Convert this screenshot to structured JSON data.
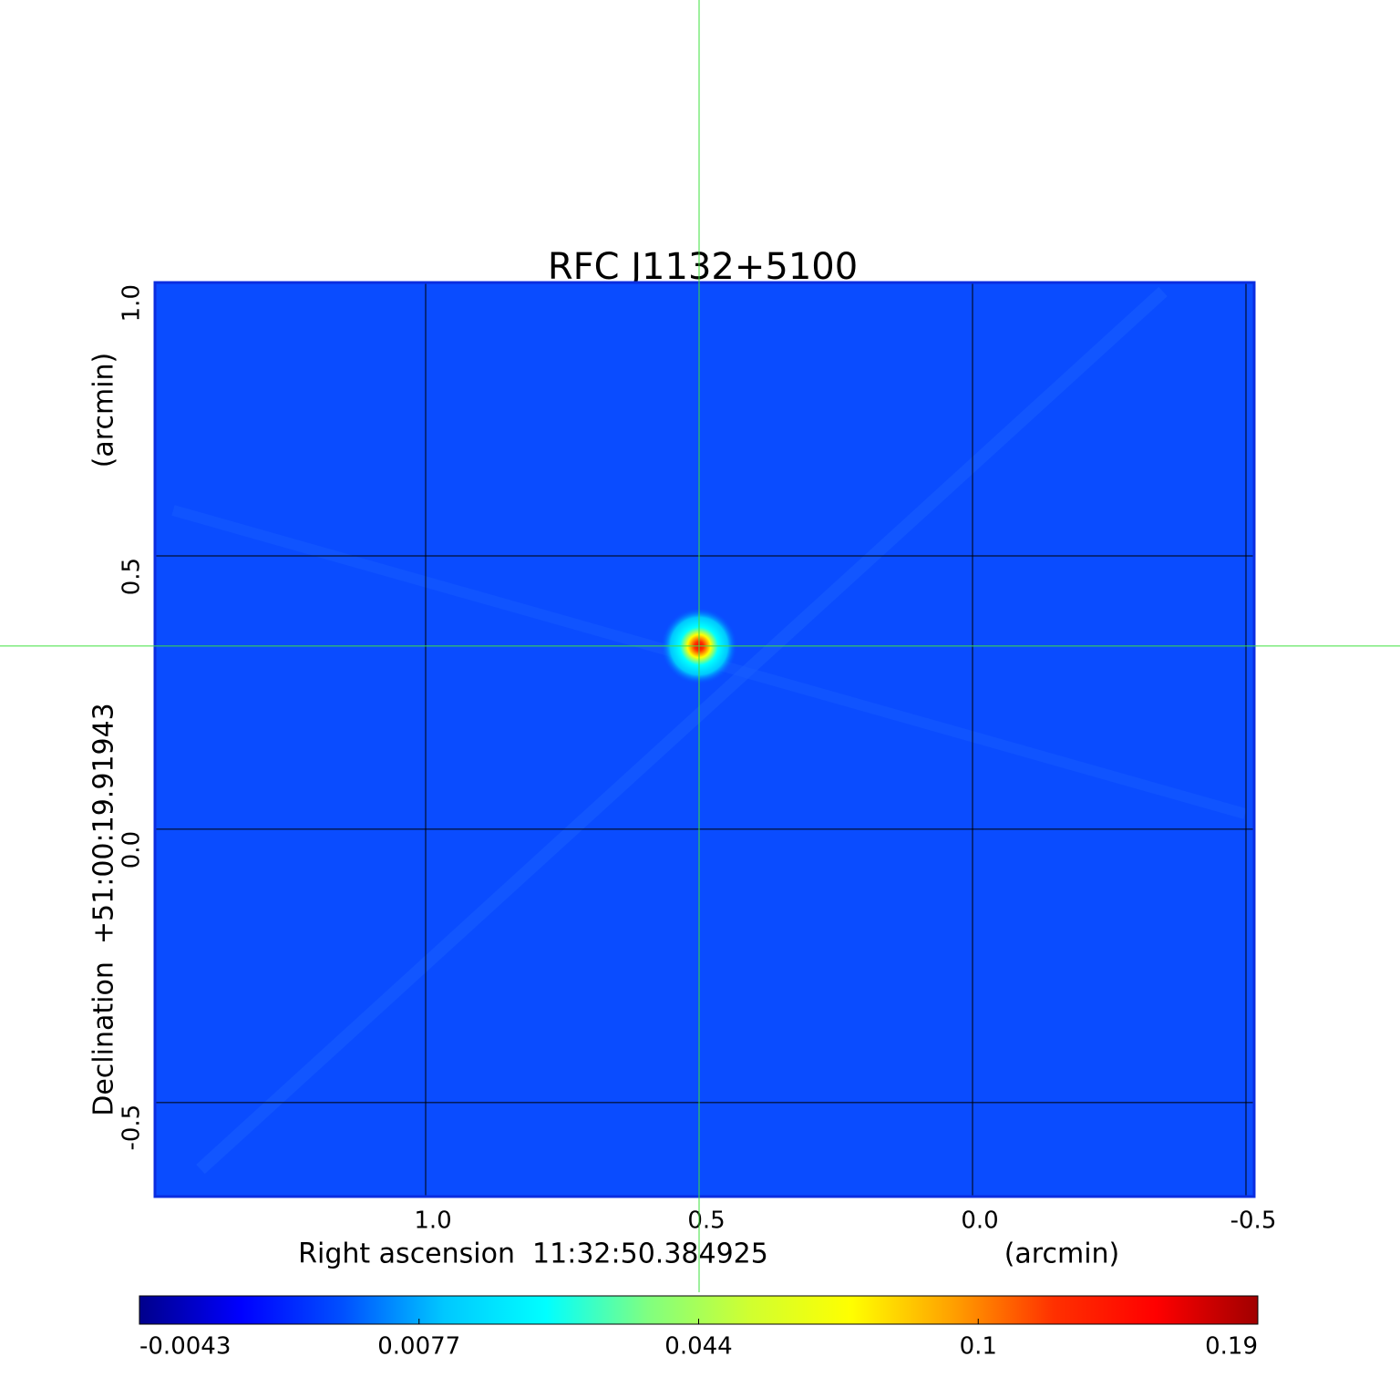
{
  "chart_data": {
    "type": "image",
    "title": "RFC J1132+5100",
    "x_label": "Right ascension  11:32:50.384925",
    "x_unit": "(arcmin)",
    "y_label": "Declination  +51:00:19.91943",
    "y_unit": "(arcmin)",
    "xlim": [
      1.495,
      -0.515
    ],
    "ylim": [
      -0.672,
      1.0
    ],
    "xticks": [
      {
        "value": 1,
        "label": "1.0"
      },
      0.5,
      {
        "value": 0,
        "label": "0.0"
      },
      -0.5
    ],
    "yticks": [
      {
        "value": 1,
        "label": "1.0"
      },
      0.5,
      {
        "value": 0,
        "label": "0.0"
      },
      -0.5
    ],
    "grid": true,
    "image_color": "#0a4cff",
    "frame_color": "#0a2de0",
    "title_color": "#1414c8",
    "crosshair": {
      "x": 0.5,
      "y": 0.335,
      "color": "#3ee03e"
    },
    "colormap": [
      "#00008b",
      "#0000ff",
      "#0050ff",
      "#00c8ff",
      "#00ffff",
      "#80ff80",
      "#d0ff30",
      "#ffff00",
      "#ffa000",
      "#ff3000",
      "#ff0000",
      "#a00000"
    ],
    "colorbar_ticks": [
      -0.0043,
      0.0077,
      0.044,
      0.1,
      0.19
    ]
  }
}
